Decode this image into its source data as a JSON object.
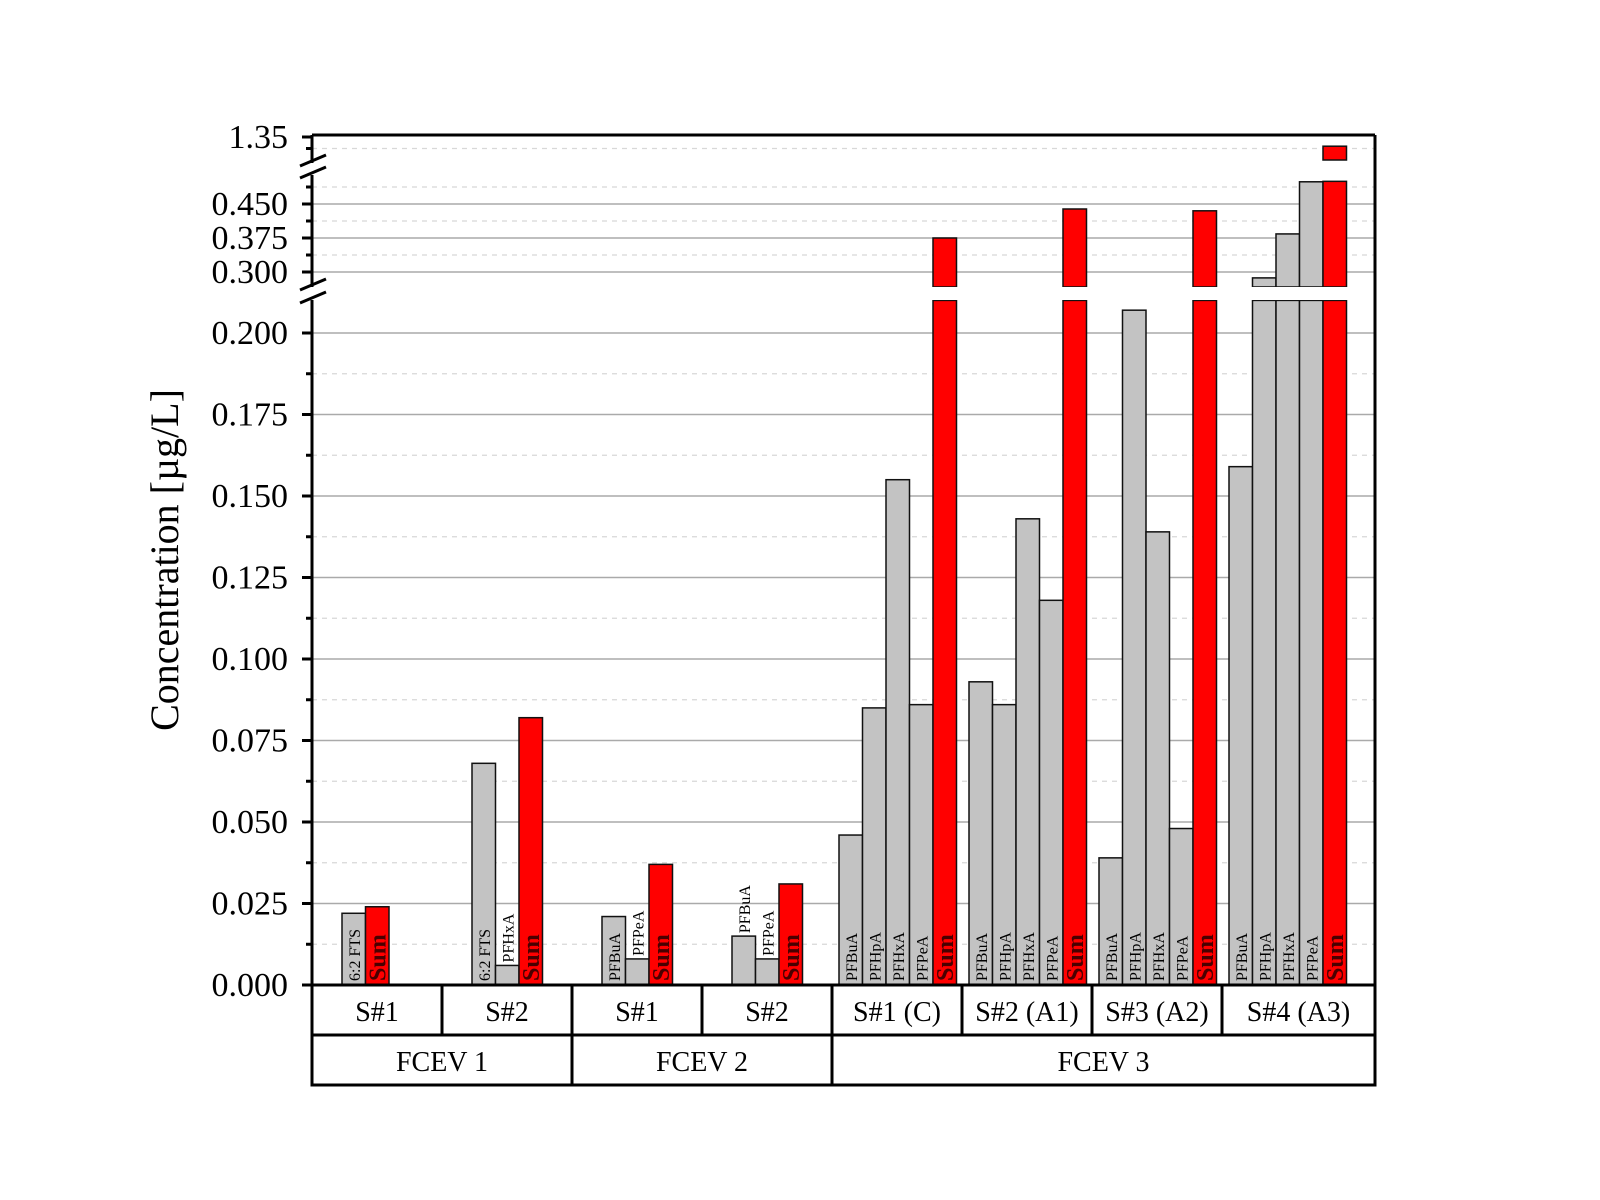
{
  "chart_data": {
    "type": "bar",
    "title": "",
    "ylabel": "Concentration [µg/L]",
    "xlabel": "",
    "y_axis_breaks": [
      [
        0.21,
        0.267
      ],
      [
        0.5,
        1.3
      ]
    ],
    "ylim": [
      0,
      1.35
    ],
    "grid": true,
    "y_ticks_lower": [
      "0.000",
      "0.025",
      "0.050",
      "0.075",
      "0.100",
      "0.125",
      "0.150",
      "0.175",
      "0.200"
    ],
    "y_ticks_middle": [
      "0.300",
      "0.375",
      "0.450"
    ],
    "y_ticks_top": [
      "1.35"
    ],
    "colors": {
      "component": "#c3c3c3",
      "sum": "#ff0000"
    },
    "vehicles": [
      {
        "label": "FCEV 1",
        "samples": [
          {
            "label": "S#1",
            "bars": [
              {
                "compound": "6:2 FTS",
                "value": 0.022
              },
              {
                "compound": "Sum",
                "value": 0.024
              }
            ]
          },
          {
            "label": "S#2",
            "bars": [
              {
                "compound": "6:2 FTS",
                "value": 0.068
              },
              {
                "compound": "PFHxA",
                "value": 0.006
              },
              {
                "compound": "Sum",
                "value": 0.082
              }
            ]
          }
        ]
      },
      {
        "label": "FCEV 2",
        "samples": [
          {
            "label": "S#1",
            "bars": [
              {
                "compound": "PFBuA",
                "value": 0.021
              },
              {
                "compound": "PFPeA",
                "value": 0.008
              },
              {
                "compound": "Sum",
                "value": 0.037
              }
            ]
          },
          {
            "label": "S#2",
            "bars": [
              {
                "compound": "PFBuA",
                "value": 0.015
              },
              {
                "compound": "PFPeA",
                "value": 0.008
              },
              {
                "compound": "Sum",
                "value": 0.031
              }
            ]
          }
        ]
      },
      {
        "label": "FCEV 3",
        "samples": [
          {
            "label": "S#1 (C)",
            "bars": [
              {
                "compound": "PFBuA",
                "value": 0.046
              },
              {
                "compound": "PFHpA",
                "value": 0.085
              },
              {
                "compound": "PFHxA",
                "value": 0.155
              },
              {
                "compound": "PFPeA",
                "value": 0.086
              },
              {
                "compound": "Sum",
                "value": 0.375
              }
            ]
          },
          {
            "label": "S#2 (A1)",
            "bars": [
              {
                "compound": "PFBuA",
                "value": 0.093
              },
              {
                "compound": "PFHpA",
                "value": 0.086
              },
              {
                "compound": "PFHxA",
                "value": 0.143
              },
              {
                "compound": "PFPeA",
                "value": 0.118
              },
              {
                "compound": "Sum",
                "value": 0.439
              }
            ]
          },
          {
            "label": "S#3 (A2)",
            "bars": [
              {
                "compound": "PFBuA",
                "value": 0.039
              },
              {
                "compound": "PFHpA",
                "value": 0.207
              },
              {
                "compound": "PFHxA",
                "value": 0.139
              },
              {
                "compound": "PFPeA",
                "value": 0.048
              },
              {
                "compound": "Sum",
                "value": 0.435
              }
            ]
          },
          {
            "label": "S#4 (A3)",
            "bars": [
              {
                "compound": "PFBuA",
                "value": 0.159
              },
              {
                "compound": "PFHpA",
                "value": 0.287
              },
              {
                "compound": "PFHxA",
                "value": 0.384
              },
              {
                "compound": "PFPeA",
                "value": 0.499
              },
              {
                "compound": "Sum",
                "value": 1.33
              }
            ]
          }
        ]
      }
    ]
  }
}
